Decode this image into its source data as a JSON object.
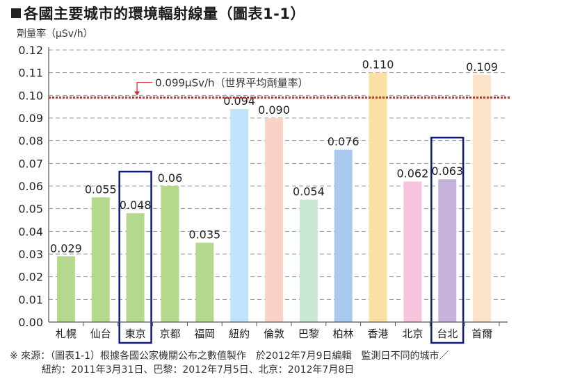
{
  "title": "各國主要城市的環境輻射線量（圖表1-1）",
  "chart_data": {
    "type": "bar",
    "ylabel": "劑量率（μSv/h）",
    "ylim": [
      0,
      0.12
    ],
    "yticks": [
      "0.00",
      "0.01",
      "0.02",
      "0.03",
      "0.04",
      "0.05",
      "0.06",
      "0.07",
      "0.08",
      "0.09",
      "0.10",
      "0.11",
      "0.12"
    ],
    "grid": true,
    "categories": [
      "札幌",
      "仙台",
      "東京",
      "京都",
      "福岡",
      "紐約",
      "倫敦",
      "巴黎",
      "柏林",
      "香港",
      "北京",
      "台北",
      "首爾"
    ],
    "values": [
      0.029,
      0.055,
      0.048,
      0.06,
      0.035,
      0.094,
      0.09,
      0.054,
      0.076,
      0.11,
      0.062,
      0.063,
      0.109
    ],
    "value_labels": [
      "0.029",
      "0.055",
      "0.048",
      "0.06",
      "0.035",
      "0.094",
      "0.090",
      "0.054",
      "0.076",
      "0.110",
      "0.062",
      "0.063",
      "0.109"
    ],
    "colors": [
      "#b5d98c",
      "#b5d98c",
      "#b5d98c",
      "#b5d98c",
      "#b5d98c",
      "#bfe4fb",
      "#fbd3c6",
      "#c9e9d5",
      "#a9c9ee",
      "#fbe0a4",
      "#f8c3dc",
      "#c7b3d9",
      "#fbe2c8"
    ],
    "highlighted": [
      "東京",
      "台北"
    ],
    "highlight_color": "#0f1a7a",
    "reference_line": {
      "value": 0.099,
      "label": "0.099μSv/h（世界平均劑量率）",
      "color": "#d42a2a"
    }
  },
  "footnote": {
    "line1": "※ 來源：（圖表1-1）根據各國公家機關公布之數值製作　於2012年7月9日編輯　監測日不同的城市／",
    "line2": "紐約：2011年3月31日、巴黎：2012年7月5日、北京：2012年7月8日"
  }
}
